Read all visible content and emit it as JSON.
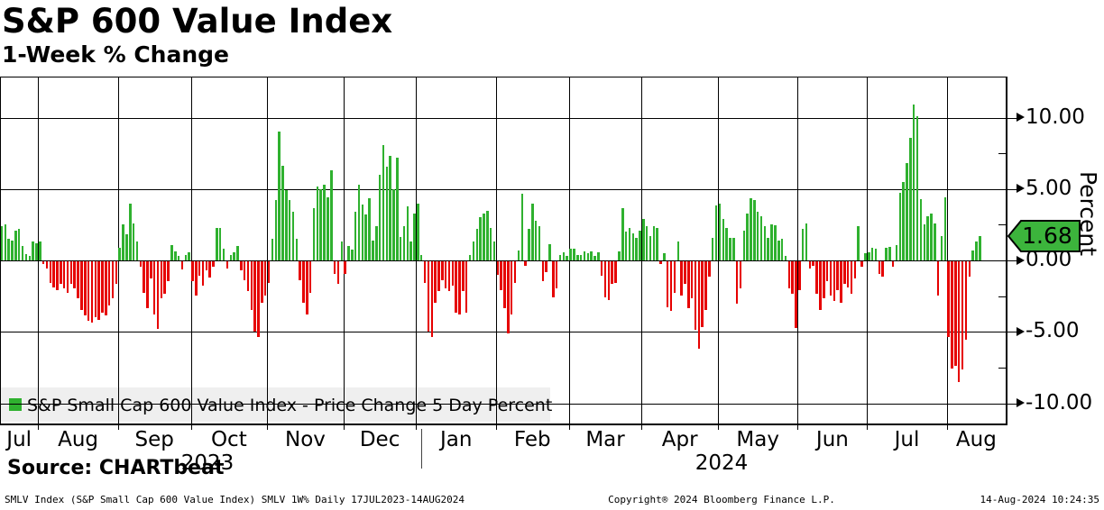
{
  "header": {
    "title": "S&P 600 Value Index",
    "subtitle": "1-Week % Change"
  },
  "chart_data": {
    "type": "bar",
    "title": "S&P 600 Value Index",
    "subtitle": "1-Week % Change",
    "ylabel": "Percent",
    "xlabel": "",
    "grid": true,
    "legend_position": "bottom-left",
    "legend_label": "S&P Small Cap 600 Value Index - Price Change 5 Day Percent",
    "ylim": [
      -11.4,
      12.9
    ],
    "y_ticks": [
      {
        "value": 10,
        "label": "10.00"
      },
      {
        "value": 5,
        "label": "5.00"
      },
      {
        "value": 0,
        "label": "0.00"
      },
      {
        "value": -5,
        "label": "-5.00"
      },
      {
        "value": -10,
        "label": "-10.00"
      }
    ],
    "y_minor_ticks": [
      7.5,
      2.5,
      -2.5,
      -7.5
    ],
    "last_value": 1.68,
    "last_value_label": "1.68",
    "colors": {
      "positive": "#2fb12f",
      "negative": "#e60000",
      "tag_fill": "#3cb43c",
      "tag_border": "#000000",
      "legend_bg": "#efefef",
      "grid": "#000000"
    },
    "x_axis": {
      "months": [
        {
          "label": "Jul",
          "days": 11
        },
        {
          "label": "Aug",
          "days": 23
        },
        {
          "label": "Sep",
          "days": 21
        },
        {
          "label": "Oct",
          "days": 22
        },
        {
          "label": "Nov",
          "days": 22
        },
        {
          "label": "Dec",
          "days": 21
        },
        {
          "label": "Jan",
          "days": 23
        },
        {
          "label": "Feb",
          "days": 21
        },
        {
          "label": "Mar",
          "days": 21
        },
        {
          "label": "Apr",
          "days": 22
        },
        {
          "label": "May",
          "days": 23
        },
        {
          "label": "Jun",
          "days": 20
        },
        {
          "label": "Jul",
          "days": 23
        },
        {
          "label": "Aug",
          "days": 10
        }
      ],
      "year_labels": [
        {
          "text": "2023",
          "x": 230
        },
        {
          "text": "2024",
          "x": 800
        }
      ]
    },
    "series": [
      {
        "name": "S&P Small Cap 600 Value Index - Price Change 5 Day Percent",
        "values": [
          2.4,
          2.5,
          1.5,
          1.4,
          2.1,
          2.2,
          1.0,
          0.45,
          0.3,
          1.35,
          1.2,
          1.3,
          -0.2,
          -0.5,
          -1.5,
          -1.8,
          -2.0,
          -1.6,
          -1.9,
          -2.2,
          -1.6,
          -1.9,
          -2.6,
          -3.4,
          -3.8,
          -4.15,
          -4.3,
          -3.9,
          -4.1,
          -3.6,
          -3.8,
          -3.1,
          -2.6,
          -1.6,
          0.9,
          2.5,
          1.85,
          3.95,
          2.6,
          1.3,
          -0.4,
          -2.2,
          -3.3,
          -1.2,
          -3.7,
          -4.75,
          -2.6,
          -2.3,
          -1.4,
          1.05,
          0.6,
          0.3,
          -0.55,
          0.35,
          0.55,
          -1.4,
          -2.4,
          -1.0,
          -1.7,
          -0.6,
          -1.15,
          -0.35,
          2.3,
          2.3,
          0.8,
          -0.5,
          0.35,
          0.55,
          1.0,
          -0.65,
          -1.3,
          -2.1,
          -3.4,
          -4.9,
          -5.3,
          -2.9,
          -2.4,
          -1.5,
          1.5,
          4.2,
          9.0,
          6.6,
          4.9,
          4.2,
          3.4,
          1.5,
          -1.35,
          -2.9,
          -3.7,
          -2.2,
          3.65,
          5.2,
          5.0,
          5.3,
          4.4,
          6.3,
          -0.9,
          -1.6,
          1.3,
          -0.9,
          1.0,
          0.75,
          3.4,
          5.3,
          3.9,
          3.2,
          4.35,
          1.4,
          2.4,
          6.0,
          8.05,
          6.55,
          7.3,
          5.0,
          7.2,
          1.65,
          2.4,
          3.8,
          1.3,
          3.3,
          4.0,
          0.4,
          -1.5,
          -4.9,
          -5.3,
          -2.9,
          -2.1,
          -1.3,
          -1.9,
          -2.1,
          -1.7,
          -3.6,
          -3.75,
          -2.1,
          -3.6,
          0.35,
          1.3,
          2.2,
          3.0,
          3.3,
          3.45,
          2.3,
          1.3,
          -0.95,
          -2.0,
          -3.3,
          -5.05,
          -3.7,
          -1.5,
          0.7,
          4.65,
          -0.3,
          2.2,
          3.95,
          2.75,
          2.4,
          -1.4,
          -0.75,
          1.15,
          -2.5,
          -1.9,
          0.35,
          0.55,
          0.3,
          0.85,
          0.8,
          0.35,
          0.4,
          0.6,
          0.5,
          0.6,
          0.3,
          0.55,
          -1.0,
          -2.5,
          -2.7,
          -1.6,
          -1.5,
          0.6,
          3.65,
          2.0,
          2.3,
          1.9,
          1.6,
          2.1,
          2.9,
          2.4,
          1.7,
          2.4,
          2.3,
          -0.2,
          0.5,
          -3.2,
          -3.5,
          -2.2,
          1.3,
          -2.4,
          -1.6,
          -3.3,
          -2.6,
          -4.8,
          -6.1,
          -4.6,
          -3.4,
          -1.1,
          1.6,
          3.85,
          3.95,
          2.9,
          2.3,
          1.6,
          1.6,
          -2.95,
          -1.9,
          2.1,
          3.3,
          4.35,
          4.2,
          3.4,
          3.1,
          2.4,
          1.6,
          2.5,
          2.45,
          1.4,
          1.5,
          0.3,
          -1.9,
          -2.3,
          -4.65,
          -2.0,
          2.2,
          2.6,
          -0.5,
          -0.3,
          -2.3,
          -3.4,
          -2.6,
          -1.4,
          -2.4,
          -2.8,
          -2.0,
          -2.9,
          -1.6,
          -1.8,
          -2.3,
          -1.2,
          2.4,
          -0.4,
          0.5,
          0.55,
          0.9,
          0.85,
          -0.9,
          -1.1,
          0.9,
          0.95,
          -0.35,
          1.05,
          4.75,
          5.5,
          6.8,
          8.55,
          10.9,
          10.1,
          4.3,
          2.5,
          3.1,
          3.3,
          2.6,
          -2.4,
          1.7,
          4.4,
          -5.3,
          -7.5,
          -7.3,
          -8.45,
          -7.6,
          -5.5,
          -1.1,
          0.7,
          1.3,
          1.68
        ]
      }
    ]
  },
  "footer": {
    "source": "Source: CHARTbeat",
    "info_line": "SMLV Index (S&P Small Cap 600 Value Index) SMLV 1W%  Daily 17JUL2023-14AUG2024",
    "copyright": "Copyright® 2024 Bloomberg Finance L.P.",
    "timestamp": "14-Aug-2024 10:24:35"
  }
}
